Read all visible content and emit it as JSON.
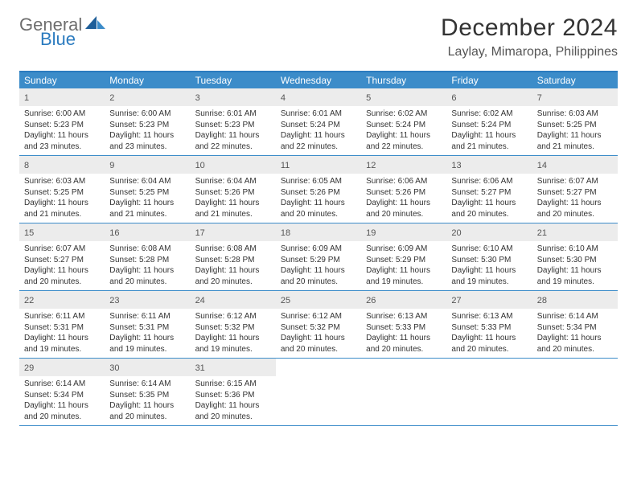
{
  "brand": {
    "word1": "General",
    "word2": "Blue",
    "sail_color": "#2b7bbf",
    "text_gray": "#6e6e6e"
  },
  "title": {
    "month": "December 2024",
    "location": "Laylay, Mimaropa, Philippines"
  },
  "colors": {
    "header_bg": "#3c8cc9",
    "header_text": "#ffffff",
    "rule": "#2b7bbf",
    "daynum_bg": "#ececec",
    "body_text": "#333333"
  },
  "day_names": [
    "Sunday",
    "Monday",
    "Tuesday",
    "Wednesday",
    "Thursday",
    "Friday",
    "Saturday"
  ],
  "labels": {
    "sunrise": "Sunrise:",
    "sunset": "Sunset:",
    "daylight": "Daylight:"
  },
  "weeks": [
    [
      {
        "n": 1,
        "sr": "6:00 AM",
        "ss": "5:23 PM",
        "dl": "11 hours and 23 minutes."
      },
      {
        "n": 2,
        "sr": "6:00 AM",
        "ss": "5:23 PM",
        "dl": "11 hours and 23 minutes."
      },
      {
        "n": 3,
        "sr": "6:01 AM",
        "ss": "5:23 PM",
        "dl": "11 hours and 22 minutes."
      },
      {
        "n": 4,
        "sr": "6:01 AM",
        "ss": "5:24 PM",
        "dl": "11 hours and 22 minutes."
      },
      {
        "n": 5,
        "sr": "6:02 AM",
        "ss": "5:24 PM",
        "dl": "11 hours and 22 minutes."
      },
      {
        "n": 6,
        "sr": "6:02 AM",
        "ss": "5:24 PM",
        "dl": "11 hours and 21 minutes."
      },
      {
        "n": 7,
        "sr": "6:03 AM",
        "ss": "5:25 PM",
        "dl": "11 hours and 21 minutes."
      }
    ],
    [
      {
        "n": 8,
        "sr": "6:03 AM",
        "ss": "5:25 PM",
        "dl": "11 hours and 21 minutes."
      },
      {
        "n": 9,
        "sr": "6:04 AM",
        "ss": "5:25 PM",
        "dl": "11 hours and 21 minutes."
      },
      {
        "n": 10,
        "sr": "6:04 AM",
        "ss": "5:26 PM",
        "dl": "11 hours and 21 minutes."
      },
      {
        "n": 11,
        "sr": "6:05 AM",
        "ss": "5:26 PM",
        "dl": "11 hours and 20 minutes."
      },
      {
        "n": 12,
        "sr": "6:06 AM",
        "ss": "5:26 PM",
        "dl": "11 hours and 20 minutes."
      },
      {
        "n": 13,
        "sr": "6:06 AM",
        "ss": "5:27 PM",
        "dl": "11 hours and 20 minutes."
      },
      {
        "n": 14,
        "sr": "6:07 AM",
        "ss": "5:27 PM",
        "dl": "11 hours and 20 minutes."
      }
    ],
    [
      {
        "n": 15,
        "sr": "6:07 AM",
        "ss": "5:27 PM",
        "dl": "11 hours and 20 minutes."
      },
      {
        "n": 16,
        "sr": "6:08 AM",
        "ss": "5:28 PM",
        "dl": "11 hours and 20 minutes."
      },
      {
        "n": 17,
        "sr": "6:08 AM",
        "ss": "5:28 PM",
        "dl": "11 hours and 20 minutes."
      },
      {
        "n": 18,
        "sr": "6:09 AM",
        "ss": "5:29 PM",
        "dl": "11 hours and 20 minutes."
      },
      {
        "n": 19,
        "sr": "6:09 AM",
        "ss": "5:29 PM",
        "dl": "11 hours and 19 minutes."
      },
      {
        "n": 20,
        "sr": "6:10 AM",
        "ss": "5:30 PM",
        "dl": "11 hours and 19 minutes."
      },
      {
        "n": 21,
        "sr": "6:10 AM",
        "ss": "5:30 PM",
        "dl": "11 hours and 19 minutes."
      }
    ],
    [
      {
        "n": 22,
        "sr": "6:11 AM",
        "ss": "5:31 PM",
        "dl": "11 hours and 19 minutes."
      },
      {
        "n": 23,
        "sr": "6:11 AM",
        "ss": "5:31 PM",
        "dl": "11 hours and 19 minutes."
      },
      {
        "n": 24,
        "sr": "6:12 AM",
        "ss": "5:32 PM",
        "dl": "11 hours and 19 minutes."
      },
      {
        "n": 25,
        "sr": "6:12 AM",
        "ss": "5:32 PM",
        "dl": "11 hours and 20 minutes."
      },
      {
        "n": 26,
        "sr": "6:13 AM",
        "ss": "5:33 PM",
        "dl": "11 hours and 20 minutes."
      },
      {
        "n": 27,
        "sr": "6:13 AM",
        "ss": "5:33 PM",
        "dl": "11 hours and 20 minutes."
      },
      {
        "n": 28,
        "sr": "6:14 AM",
        "ss": "5:34 PM",
        "dl": "11 hours and 20 minutes."
      }
    ],
    [
      {
        "n": 29,
        "sr": "6:14 AM",
        "ss": "5:34 PM",
        "dl": "11 hours and 20 minutes."
      },
      {
        "n": 30,
        "sr": "6:14 AM",
        "ss": "5:35 PM",
        "dl": "11 hours and 20 minutes."
      },
      {
        "n": 31,
        "sr": "6:15 AM",
        "ss": "5:36 PM",
        "dl": "11 hours and 20 minutes."
      },
      null,
      null,
      null,
      null
    ]
  ]
}
